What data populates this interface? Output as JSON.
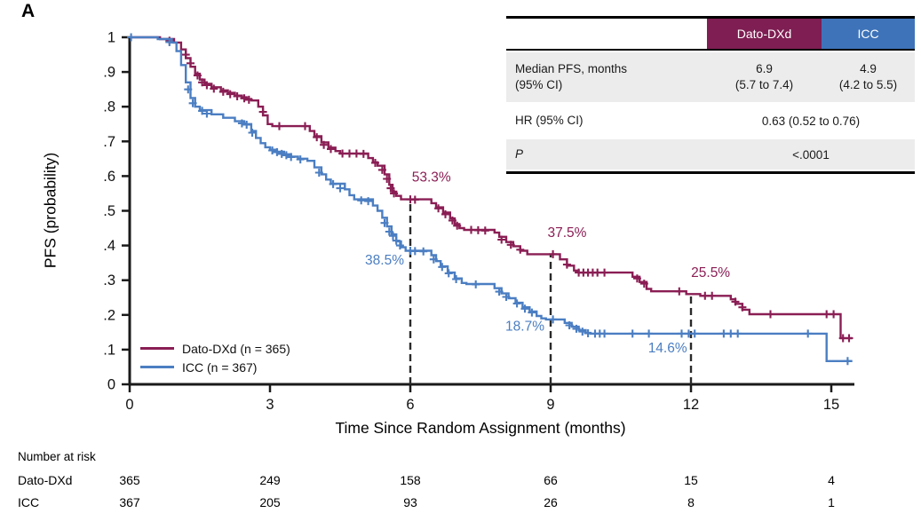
{
  "panel_label": "A",
  "colors": {
    "dato": "#8A1E54",
    "icc": "#4B7EC2",
    "dato_header_bg": "#7E1E52",
    "icc_header_bg": "#3E73B9",
    "row_gray": "#ECECEC",
    "axis": "#1A1A1A",
    "dashed_line": "#2A2A2A"
  },
  "inset": {
    "header_dato": "Dato-DXd",
    "header_icc": "ICC",
    "row1_label_line1": "Median PFS, months",
    "row1_label_line2": "(95% CI)",
    "row1_dato_line1": "6.9",
    "row1_dato_line2": "(5.7 to 7.4)",
    "row1_icc_line1": "4.9",
    "row1_icc_line2": "(4.2 to 5.5)",
    "row2_label": "HR (95% CI)",
    "row2_value": "0.63 (0.52 to 0.76)",
    "row3_label": "P",
    "row3_value": "<.0001"
  },
  "legend": {
    "dato": "Dato-DXd (n = 365)",
    "icc": "ICC (n = 367)"
  },
  "chart_data": {
    "type": "line",
    "subtype": "kaplan-meier-step",
    "xlabel": "Time Since Random Assignment (months)",
    "ylabel": "PFS (probability)",
    "xlim": [
      0,
      15.5
    ],
    "ylim": [
      0,
      1
    ],
    "x_ticks": [
      0,
      3,
      6,
      9,
      12,
      15
    ],
    "y_ticks": [
      "0",
      ".1",
      ".2",
      ".3",
      ".4",
      ".5",
      ".6",
      ".7",
      ".8",
      ".9",
      "1"
    ],
    "grid": false,
    "legend_position": "lower-left",
    "dashed_reference_lines": [
      {
        "t": 6,
        "top": 0.533
      },
      {
        "t": 9,
        "top": 0.375
      },
      {
        "t": 12,
        "top": 0.262
      }
    ],
    "annotations": [
      {
        "label": "53.3%",
        "t": 6.45,
        "p": 0.585,
        "series": "dato"
      },
      {
        "label": "38.5%",
        "t": 5.45,
        "p": 0.345,
        "series": "icc"
      },
      {
        "label": "37.5%",
        "t": 9.35,
        "p": 0.425,
        "series": "dato"
      },
      {
        "label": "18.7%",
        "t": 8.45,
        "p": 0.155,
        "series": "icc"
      },
      {
        "label": "25.5%",
        "t": 12.42,
        "p": 0.31,
        "series": "dato"
      },
      {
        "label": "14.6%",
        "t": 11.5,
        "p": 0.092,
        "series": "icc"
      }
    ],
    "series": [
      {
        "key": "dato",
        "name": "Dato-DXd (n = 365)",
        "n": 365,
        "end_t": 15.45,
        "steps": [
          [
            0.65,
            0.995
          ],
          [
            0.95,
            0.985
          ],
          [
            1.1,
            0.965
          ],
          [
            1.2,
            0.94
          ],
          [
            1.3,
            0.915
          ],
          [
            1.4,
            0.895
          ],
          [
            1.5,
            0.878
          ],
          [
            1.6,
            0.866
          ],
          [
            1.75,
            0.856
          ],
          [
            1.95,
            0.847
          ],
          [
            2.1,
            0.84
          ],
          [
            2.25,
            0.832
          ],
          [
            2.4,
            0.827
          ],
          [
            2.5,
            0.822
          ],
          [
            2.6,
            0.818
          ],
          [
            2.75,
            0.8
          ],
          [
            2.85,
            0.775
          ],
          [
            2.95,
            0.75
          ],
          [
            3.05,
            0.744
          ],
          [
            3.85,
            0.73
          ],
          [
            3.95,
            0.715
          ],
          [
            4.1,
            0.697
          ],
          [
            4.25,
            0.682
          ],
          [
            4.4,
            0.672
          ],
          [
            4.5,
            0.665
          ],
          [
            5.1,
            0.652
          ],
          [
            5.2,
            0.64
          ],
          [
            5.3,
            0.63
          ],
          [
            5.45,
            0.605
          ],
          [
            5.55,
            0.575
          ],
          [
            5.62,
            0.555
          ],
          [
            5.7,
            0.543
          ],
          [
            5.8,
            0.533
          ],
          [
            6.45,
            0.522
          ],
          [
            6.55,
            0.51
          ],
          [
            6.7,
            0.495
          ],
          [
            6.85,
            0.478
          ],
          [
            6.95,
            0.462
          ],
          [
            7.05,
            0.45
          ],
          [
            7.15,
            0.445
          ],
          [
            7.8,
            0.437
          ],
          [
            7.9,
            0.425
          ],
          [
            8.05,
            0.41
          ],
          [
            8.2,
            0.398
          ],
          [
            8.35,
            0.385
          ],
          [
            8.5,
            0.375
          ],
          [
            9.2,
            0.36
          ],
          [
            9.35,
            0.342
          ],
          [
            9.5,
            0.328
          ],
          [
            9.6,
            0.322
          ],
          [
            10.75,
            0.31
          ],
          [
            10.9,
            0.295
          ],
          [
            11.05,
            0.275
          ],
          [
            11.15,
            0.268
          ],
          [
            11.9,
            0.26
          ],
          [
            12.2,
            0.255
          ],
          [
            12.85,
            0.245
          ],
          [
            12.95,
            0.232
          ],
          [
            13.1,
            0.215
          ],
          [
            13.25,
            0.202
          ],
          [
            15.2,
            0.133
          ]
        ],
        "censors": [
          [
            0.85,
            0.99
          ],
          [
            1.2,
            0.95
          ],
          [
            1.3,
            0.925
          ],
          [
            1.45,
            0.89
          ],
          [
            1.55,
            0.87
          ],
          [
            1.65,
            0.862
          ],
          [
            1.8,
            0.852
          ],
          [
            2.0,
            0.843
          ],
          [
            2.15,
            0.836
          ],
          [
            2.3,
            0.83
          ],
          [
            2.45,
            0.824
          ],
          [
            2.55,
            0.82
          ],
          [
            2.85,
            0.785
          ],
          [
            3.2,
            0.744
          ],
          [
            3.75,
            0.744
          ],
          [
            4.0,
            0.712
          ],
          [
            4.15,
            0.69
          ],
          [
            4.3,
            0.678
          ],
          [
            4.55,
            0.665
          ],
          [
            4.7,
            0.665
          ],
          [
            4.85,
            0.665
          ],
          [
            5.0,
            0.664
          ],
          [
            5.25,
            0.638
          ],
          [
            5.4,
            0.618
          ],
          [
            5.5,
            0.592
          ],
          [
            5.58,
            0.565
          ],
          [
            5.65,
            0.55
          ],
          [
            6.0,
            0.533
          ],
          [
            6.1,
            0.532
          ],
          [
            6.6,
            0.507
          ],
          [
            6.75,
            0.49
          ],
          [
            6.9,
            0.472
          ],
          [
            7.0,
            0.457
          ],
          [
            7.3,
            0.445
          ],
          [
            7.45,
            0.444
          ],
          [
            7.6,
            0.443
          ],
          [
            7.95,
            0.417
          ],
          [
            8.15,
            0.402
          ],
          [
            8.35,
            0.388
          ],
          [
            9.05,
            0.375
          ],
          [
            9.35,
            0.345
          ],
          [
            9.6,
            0.322
          ],
          [
            9.7,
            0.322
          ],
          [
            9.8,
            0.322
          ],
          [
            9.9,
            0.322
          ],
          [
            10.0,
            0.322
          ],
          [
            10.15,
            0.322
          ],
          [
            10.85,
            0.305
          ],
          [
            11.0,
            0.29
          ],
          [
            11.75,
            0.268
          ],
          [
            12.3,
            0.255
          ],
          [
            12.45,
            0.255
          ],
          [
            12.95,
            0.238
          ],
          [
            13.1,
            0.222
          ],
          [
            13.7,
            0.202
          ],
          [
            14.9,
            0.202
          ],
          [
            15.05,
            0.202
          ],
          [
            15.25,
            0.133
          ],
          [
            15.38,
            0.133
          ]
        ]
      },
      {
        "key": "icc",
        "name": "ICC (n = 367)",
        "n": 367,
        "end_t": 15.45,
        "steps": [
          [
            0.6,
            0.995
          ],
          [
            0.9,
            0.985
          ],
          [
            1.0,
            0.96
          ],
          [
            1.1,
            0.92
          ],
          [
            1.2,
            0.87
          ],
          [
            1.3,
            0.825
          ],
          [
            1.4,
            0.8
          ],
          [
            1.5,
            0.79
          ],
          [
            1.75,
            0.778
          ],
          [
            2.0,
            0.768
          ],
          [
            2.25,
            0.758
          ],
          [
            2.45,
            0.75
          ],
          [
            2.6,
            0.73
          ],
          [
            2.7,
            0.71
          ],
          [
            2.8,
            0.695
          ],
          [
            2.9,
            0.683
          ],
          [
            3.0,
            0.676
          ],
          [
            3.15,
            0.67
          ],
          [
            3.3,
            0.663
          ],
          [
            3.45,
            0.656
          ],
          [
            3.6,
            0.65
          ],
          [
            3.8,
            0.644
          ],
          [
            3.95,
            0.625
          ],
          [
            4.1,
            0.605
          ],
          [
            4.2,
            0.59
          ],
          [
            4.3,
            0.578
          ],
          [
            4.6,
            0.562
          ],
          [
            4.7,
            0.545
          ],
          [
            4.8,
            0.533
          ],
          [
            5.2,
            0.515
          ],
          [
            5.3,
            0.5
          ],
          [
            5.4,
            0.48
          ],
          [
            5.5,
            0.455
          ],
          [
            5.6,
            0.432
          ],
          [
            5.7,
            0.412
          ],
          [
            5.8,
            0.395
          ],
          [
            5.9,
            0.385
          ],
          [
            6.45,
            0.372
          ],
          [
            6.55,
            0.355
          ],
          [
            6.65,
            0.34
          ],
          [
            6.8,
            0.322
          ],
          [
            6.95,
            0.305
          ],
          [
            7.1,
            0.292
          ],
          [
            7.2,
            0.289
          ],
          [
            7.8,
            0.277
          ],
          [
            7.95,
            0.262
          ],
          [
            8.1,
            0.248
          ],
          [
            8.25,
            0.235
          ],
          [
            8.4,
            0.222
          ],
          [
            8.55,
            0.21
          ],
          [
            8.7,
            0.197
          ],
          [
            8.8,
            0.19
          ],
          [
            8.9,
            0.187
          ],
          [
            9.3,
            0.177
          ],
          [
            9.45,
            0.166
          ],
          [
            9.6,
            0.156
          ],
          [
            9.75,
            0.148
          ],
          [
            9.85,
            0.146
          ],
          [
            14.9,
            0.067
          ]
        ],
        "censors": [
          [
            0.03,
            1.0
          ],
          [
            0.85,
            0.986
          ],
          [
            1.25,
            0.85
          ],
          [
            1.35,
            0.81
          ],
          [
            1.55,
            0.788
          ],
          [
            1.65,
            0.78
          ],
          [
            2.4,
            0.752
          ],
          [
            2.5,
            0.748
          ],
          [
            2.62,
            0.725
          ],
          [
            3.05,
            0.674
          ],
          [
            3.15,
            0.669
          ],
          [
            3.25,
            0.664
          ],
          [
            3.35,
            0.66
          ],
          [
            3.45,
            0.655
          ],
          [
            3.65,
            0.648
          ],
          [
            4.05,
            0.61
          ],
          [
            4.35,
            0.577
          ],
          [
            4.5,
            0.565
          ],
          [
            4.95,
            0.53
          ],
          [
            5.1,
            0.528
          ],
          [
            5.45,
            0.465
          ],
          [
            5.55,
            0.44
          ],
          [
            5.63,
            0.428
          ],
          [
            5.7,
            0.414
          ],
          [
            5.78,
            0.4
          ],
          [
            6.0,
            0.385
          ],
          [
            6.1,
            0.384
          ],
          [
            6.28,
            0.383
          ],
          [
            6.5,
            0.36
          ],
          [
            6.68,
            0.338
          ],
          [
            6.82,
            0.32
          ],
          [
            6.98,
            0.303
          ],
          [
            7.4,
            0.288
          ],
          [
            7.9,
            0.267
          ],
          [
            8.05,
            0.252
          ],
          [
            8.28,
            0.233
          ],
          [
            8.45,
            0.218
          ],
          [
            8.6,
            0.207
          ],
          [
            9.05,
            0.187
          ],
          [
            9.4,
            0.17
          ],
          [
            9.55,
            0.16
          ],
          [
            9.68,
            0.152
          ],
          [
            9.8,
            0.147
          ],
          [
            9.95,
            0.146
          ],
          [
            10.05,
            0.146
          ],
          [
            10.15,
            0.146
          ],
          [
            10.75,
            0.146
          ],
          [
            11.1,
            0.146
          ],
          [
            11.8,
            0.146
          ],
          [
            11.95,
            0.146
          ],
          [
            12.08,
            0.146
          ],
          [
            12.7,
            0.146
          ],
          [
            12.85,
            0.146
          ],
          [
            13.0,
            0.146
          ],
          [
            14.5,
            0.146
          ],
          [
            15.35,
            0.067
          ]
        ]
      }
    ],
    "risk_table": {
      "title": "Number at risk",
      "times": [
        0,
        3,
        6,
        9,
        12,
        15
      ],
      "rows": [
        {
          "label": "Dato-DXd",
          "values": [
            365,
            249,
            158,
            66,
            15,
            4
          ]
        },
        {
          "label": "ICC",
          "values": [
            367,
            205,
            93,
            26,
            8,
            1
          ]
        }
      ]
    }
  }
}
